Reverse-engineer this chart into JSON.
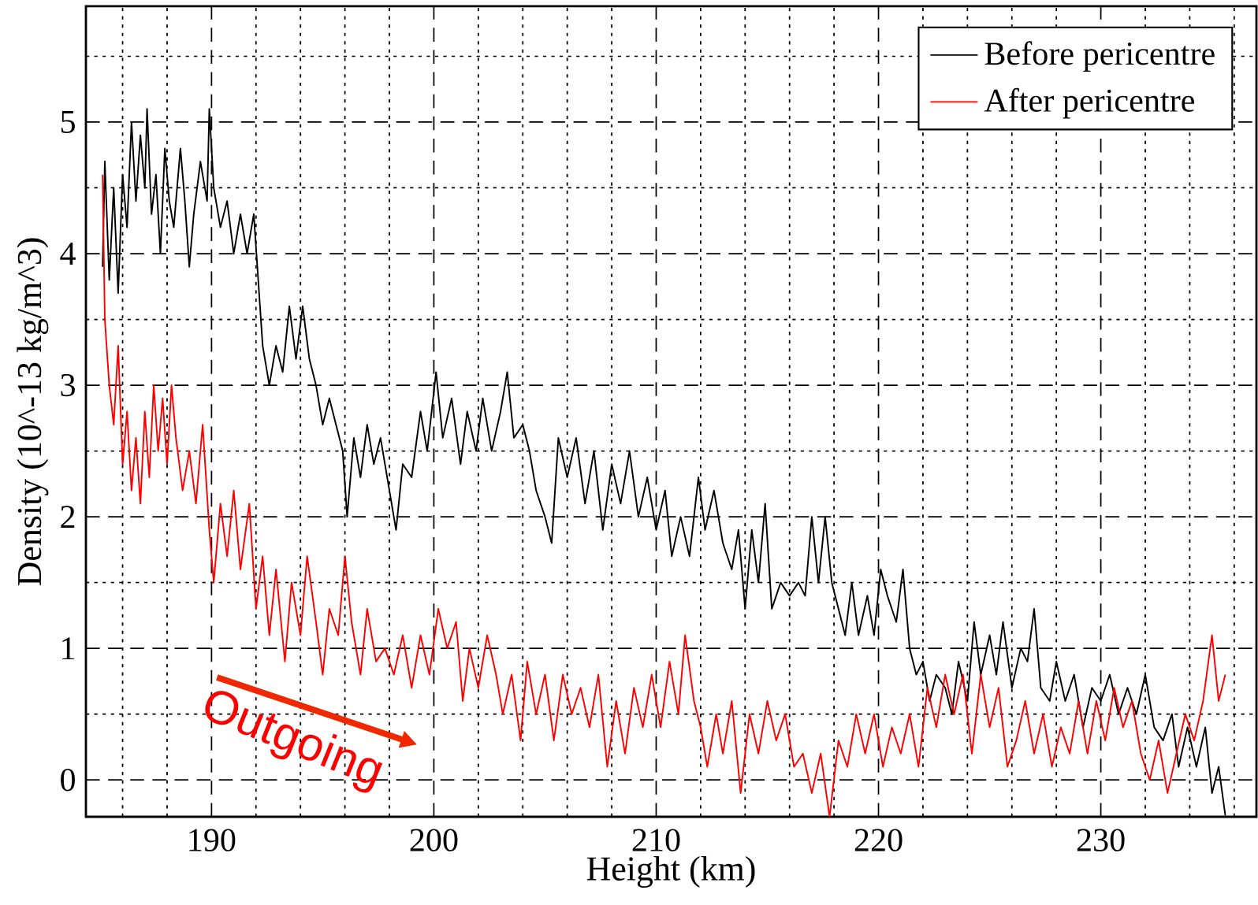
{
  "chart_data": {
    "type": "line",
    "xlabel": "Height (km)",
    "ylabel": "Density (10^-13 kg/m^3)",
    "xlim": [
      184.35,
      237
    ],
    "ylim": [
      -0.28,
      5.88
    ],
    "xticks": [
      {
        "value": 186,
        "label": null
      },
      {
        "value": 188,
        "label": null
      },
      190,
      {
        "value": 192,
        "label": null
      },
      {
        "value": 194,
        "label": null
      },
      {
        "value": 196,
        "label": null
      },
      {
        "value": 198,
        "label": null
      },
      200,
      {
        "value": 202,
        "label": null
      },
      {
        "value": 204,
        "label": null
      },
      {
        "value": 206,
        "label": null
      },
      {
        "value": 208,
        "label": null
      },
      210,
      {
        "value": 212,
        "label": null
      },
      {
        "value": 214,
        "label": null
      },
      {
        "value": 216,
        "label": null
      },
      {
        "value": 218,
        "label": null
      },
      220,
      {
        "value": 222,
        "label": null
      },
      {
        "value": 224,
        "label": null
      },
      {
        "value": 226,
        "label": null
      },
      {
        "value": 228,
        "label": null
      },
      230,
      {
        "value": 232,
        "label": null
      },
      {
        "value": 234,
        "label": null
      },
      {
        "value": 236,
        "label": null
      }
    ],
    "yticks": [
      0,
      {
        "value": 0.5,
        "label": null
      },
      1,
      {
        "value": 1.5,
        "label": null
      },
      2,
      {
        "value": 2.5,
        "label": null
      },
      3,
      {
        "value": 3.5,
        "label": null
      },
      4,
      {
        "value": 4.5,
        "label": null
      },
      5,
      {
        "value": 5.5,
        "label": null
      }
    ],
    "grid": true,
    "legend": "top right",
    "line_style": "solid",
    "marker": "none",
    "annotations": [
      "Outgoing"
    ],
    "series": [
      {
        "name": "Before pericentre",
        "color": "#000000",
        "x": [
          185.1,
          185.2,
          185.4,
          185.6,
          185.8,
          186.0,
          186.2,
          186.4,
          186.6,
          186.8,
          187.0,
          187.1,
          187.3,
          187.5,
          187.7,
          187.9,
          188.1,
          188.3,
          188.6,
          188.8,
          189.0,
          189.2,
          189.5,
          189.8,
          189.9,
          190.1,
          190.4,
          190.7,
          191.0,
          191.3,
          191.6,
          191.9,
          192.1,
          192.3,
          192.6,
          192.9,
          193.2,
          193.5,
          193.8,
          194.1,
          194.4,
          194.7,
          195.0,
          195.3,
          195.6,
          195.9,
          196.1,
          196.4,
          196.7,
          197.0,
          197.3,
          197.6,
          198.0,
          198.3,
          198.6,
          199.0,
          199.4,
          199.7,
          200.1,
          200.4,
          200.8,
          201.2,
          201.5,
          201.9,
          202.2,
          202.6,
          203.0,
          203.3,
          203.6,
          204.0,
          204.3,
          204.6,
          205.0,
          205.3,
          205.6,
          206.0,
          206.4,
          206.8,
          207.2,
          207.6,
          208.0,
          208.4,
          208.8,
          209.2,
          209.6,
          210.0,
          210.4,
          210.7,
          211.1,
          211.5,
          211.9,
          212.2,
          212.6,
          213.0,
          213.4,
          213.7,
          214.0,
          214.3,
          214.6,
          214.9,
          215.2,
          215.6,
          216.0,
          216.4,
          216.7,
          217.0,
          217.3,
          217.6,
          217.9,
          218.2,
          218.5,
          218.8,
          219.1,
          219.5,
          219.8,
          220.1,
          220.4,
          220.8,
          221.1,
          221.4,
          221.7,
          222.0,
          222.3,
          222.6,
          223.0,
          223.3,
          223.6,
          224.0,
          224.3,
          224.6,
          225.0,
          225.3,
          225.6,
          226.0,
          226.4,
          226.7,
          227.0,
          227.3,
          227.7,
          228.0,
          228.4,
          228.8,
          229.2,
          229.6,
          230.0,
          230.4,
          230.8,
          231.2,
          231.6,
          232.0,
          232.4,
          232.8,
          233.2,
          233.5,
          233.9,
          234.3,
          234.7,
          235.0,
          235.3,
          235.6
        ],
        "values": [
          3.9,
          4.7,
          3.8,
          4.5,
          3.7,
          4.6,
          4.2,
          5.0,
          4.4,
          4.9,
          4.5,
          5.1,
          4.3,
          4.6,
          4.0,
          4.8,
          4.4,
          4.2,
          4.8,
          4.4,
          3.9,
          4.3,
          4.7,
          4.4,
          5.1,
          4.5,
          4.2,
          4.4,
          4.0,
          4.3,
          4.0,
          4.3,
          3.8,
          3.3,
          3.0,
          3.3,
          3.1,
          3.6,
          3.2,
          3.6,
          3.2,
          3.0,
          2.7,
          2.9,
          2.7,
          2.5,
          2.0,
          2.6,
          2.3,
          2.7,
          2.4,
          2.6,
          2.2,
          1.9,
          2.4,
          2.3,
          2.8,
          2.5,
          3.1,
          2.6,
          2.9,
          2.4,
          2.8,
          2.5,
          2.9,
          2.5,
          2.8,
          3.1,
          2.6,
          2.7,
          2.5,
          2.2,
          2.0,
          1.8,
          2.6,
          2.3,
          2.6,
          2.1,
          2.5,
          1.9,
          2.4,
          2.1,
          2.5,
          2.0,
          2.3,
          1.9,
          2.2,
          1.7,
          2.0,
          1.7,
          2.3,
          1.9,
          2.2,
          1.8,
          1.6,
          1.9,
          1.3,
          1.9,
          1.5,
          2.1,
          1.3,
          1.5,
          1.4,
          1.5,
          1.4,
          2.0,
          1.5,
          2.0,
          1.5,
          1.3,
          1.1,
          1.5,
          1.1,
          1.4,
          1.1,
          1.6,
          1.4,
          1.2,
          1.6,
          1.0,
          0.8,
          0.9,
          0.6,
          0.8,
          0.7,
          0.5,
          0.9,
          0.6,
          1.2,
          0.8,
          1.1,
          0.8,
          1.2,
          0.7,
          1.0,
          0.9,
          1.3,
          0.7,
          0.6,
          0.9,
          0.6,
          0.8,
          0.4,
          0.7,
          0.6,
          0.8,
          0.5,
          0.7,
          0.5,
          0.8,
          0.4,
          0.3,
          0.5,
          0.1,
          0.4,
          0.1,
          0.4,
          -0.1,
          0.1,
          -0.27
        ]
      },
      {
        "name": "After pericentre",
        "color": "#ff0000",
        "x": [
          185.1,
          185.2,
          185.4,
          185.6,
          185.8,
          186.0,
          186.2,
          186.4,
          186.6,
          186.8,
          187.0,
          187.2,
          187.4,
          187.6,
          187.8,
          188.0,
          188.2,
          188.4,
          188.7,
          189.0,
          189.3,
          189.6,
          189.9,
          190.1,
          190.4,
          190.7,
          191.0,
          191.3,
          191.7,
          192.0,
          192.3,
          192.6,
          192.9,
          193.3,
          193.6,
          194.0,
          194.3,
          194.7,
          195.0,
          195.3,
          195.7,
          196.0,
          196.3,
          196.7,
          197.0,
          197.4,
          197.8,
          198.2,
          198.6,
          199.0,
          199.4,
          199.8,
          200.2,
          200.6,
          201.0,
          201.3,
          201.6,
          202.0,
          202.4,
          202.8,
          203.1,
          203.5,
          203.9,
          204.2,
          204.6,
          205.0,
          205.4,
          205.8,
          206.2,
          206.6,
          207.0,
          207.4,
          207.8,
          208.2,
          208.6,
          209.0,
          209.4,
          209.8,
          210.2,
          210.6,
          211.0,
          211.3,
          211.7,
          212.0,
          212.3,
          212.7,
          213.0,
          213.4,
          213.8,
          214.2,
          214.6,
          215.0,
          215.4,
          215.8,
          216.2,
          216.6,
          217.0,
          217.4,
          217.8,
          218.2,
          218.6,
          219.0,
          219.4,
          219.8,
          220.2,
          220.6,
          221.0,
          221.4,
          221.8,
          222.2,
          222.6,
          223.0,
          223.4,
          223.8,
          224.2,
          224.6,
          225.0,
          225.4,
          225.8,
          226.2,
          226.6,
          227.0,
          227.4,
          227.8,
          228.2,
          228.6,
          229.0,
          229.4,
          229.8,
          230.2,
          230.6,
          231.0,
          231.4,
          231.8,
          232.2,
          232.6,
          233.0,
          233.4,
          233.8,
          234.2,
          234.6,
          235.0,
          235.3,
          235.6
        ],
        "values": [
          4.6,
          3.5,
          3.0,
          2.7,
          3.3,
          2.4,
          2.8,
          2.2,
          2.6,
          2.1,
          2.8,
          2.3,
          3.0,
          2.5,
          2.9,
          2.4,
          3.0,
          2.6,
          2.2,
          2.5,
          2.1,
          2.7,
          1.9,
          1.5,
          2.1,
          1.7,
          2.2,
          1.6,
          2.1,
          1.3,
          1.7,
          1.1,
          1.6,
          0.9,
          1.5,
          1.1,
          1.7,
          1.2,
          0.8,
          1.3,
          1.1,
          1.7,
          1.2,
          0.8,
          1.3,
          0.9,
          1.0,
          0.8,
          1.1,
          0.7,
          1.1,
          0.8,
          1.3,
          1.0,
          1.2,
          0.6,
          1.0,
          0.7,
          1.1,
          0.8,
          0.5,
          0.8,
          0.3,
          0.9,
          0.5,
          0.8,
          0.3,
          0.8,
          0.5,
          0.7,
          0.4,
          0.8,
          0.1,
          0.6,
          0.2,
          0.7,
          0.4,
          0.8,
          0.4,
          0.9,
          0.5,
          1.1,
          0.6,
          0.4,
          0.1,
          0.5,
          0.2,
          0.6,
          -0.1,
          0.5,
          0.2,
          0.6,
          0.3,
          0.5,
          0.1,
          0.2,
          -0.1,
          0.2,
          -0.28,
          0.3,
          0.1,
          0.5,
          0.2,
          0.5,
          0.1,
          0.4,
          0.2,
          0.5,
          0.1,
          0.7,
          0.4,
          0.8,
          0.5,
          0.8,
          0.2,
          0.8,
          0.4,
          0.7,
          0.1,
          0.3,
          0.6,
          0.2,
          0.5,
          0.1,
          0.4,
          0.2,
          0.6,
          0.2,
          0.6,
          0.3,
          0.7,
          0.4,
          0.6,
          0.2,
          0.0,
          0.3,
          -0.1,
          0.2,
          0.5,
          0.3,
          0.6,
          1.1,
          0.6,
          0.8
        ]
      }
    ]
  }
}
